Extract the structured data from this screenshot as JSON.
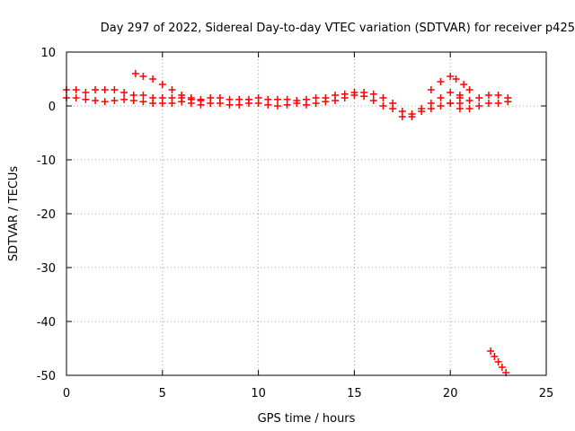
{
  "chart_data": {
    "type": "scatter",
    "title": "Day 297 of 2022, Sidereal Day-to-day VTEC variation (SDTVAR) for receiver p425",
    "xlabel": "GPS time / hours",
    "ylabel": "SDTVAR / TECUs",
    "xlim": [
      0,
      25
    ],
    "ylim": [
      -50,
      10
    ],
    "xticks": [
      0,
      5,
      10,
      15,
      20,
      25
    ],
    "yticks": [
      10,
      0,
      -10,
      -20,
      -30,
      -40,
      -50
    ],
    "grid": true,
    "marker": "+",
    "color": "#ff0000",
    "series": [
      {
        "name": "main-band-upper",
        "x": [
          0.0,
          0.5,
          1.0,
          1.5,
          2.0,
          2.5,
          3.0,
          3.5,
          4.0,
          4.5,
          5.0,
          5.5,
          6.0,
          6.5,
          7.0,
          7.5,
          8.0,
          8.5,
          9.0,
          9.5,
          10.0,
          10.5,
          11.0,
          11.5,
          12.0,
          12.5,
          13.0,
          13.5,
          14.0,
          14.5,
          15.0,
          15.5,
          16.0,
          16.5,
          17.0,
          17.5,
          18.0,
          18.5,
          19.0,
          19.5,
          20.0,
          20.5
        ],
        "y": [
          3.0,
          3.0,
          2.5,
          3.0,
          3.0,
          3.0,
          2.5,
          2.0,
          2.0,
          1.5,
          1.5,
          1.5,
          1.5,
          1.2,
          1.2,
          1.5,
          1.5,
          1.2,
          1.2,
          1.2,
          1.5,
          1.2,
          1.2,
          1.2,
          1.0,
          1.2,
          1.5,
          1.5,
          2.0,
          2.2,
          2.5,
          2.5,
          2.2,
          1.5,
          0.5,
          -1.0,
          -1.5,
          -0.5,
          0.5,
          1.5,
          2.5,
          2.0
        ]
      },
      {
        "name": "main-band-lower",
        "x": [
          0.0,
          0.5,
          1.0,
          1.5,
          2.0,
          2.5,
          3.0,
          3.5,
          4.0,
          4.5,
          5.0,
          5.5,
          6.0,
          6.5,
          7.0,
          7.5,
          8.0,
          8.5,
          9.0,
          9.5,
          10.0,
          10.5,
          11.0,
          11.5,
          12.0,
          12.5,
          13.0,
          13.5,
          14.0,
          14.5,
          15.0,
          15.5,
          16.0,
          16.5,
          17.0,
          17.5,
          18.0,
          18.5,
          19.0,
          19.5,
          20.0,
          20.5
        ],
        "y": [
          1.5,
          1.5,
          1.2,
          1.0,
          0.8,
          1.0,
          1.2,
          1.0,
          0.8,
          0.5,
          0.5,
          0.5,
          0.8,
          0.5,
          0.2,
          0.5,
          0.5,
          0.2,
          0.2,
          0.5,
          0.5,
          0.2,
          0.0,
          0.2,
          0.5,
          0.2,
          0.5,
          0.8,
          1.0,
          1.5,
          2.0,
          1.8,
          1.0,
          0.0,
          -0.5,
          -2.0,
          -2.0,
          -1.0,
          -0.5,
          0.0,
          0.5,
          0.5
        ]
      },
      {
        "name": "arc-early",
        "x": [
          3.6,
          4.0,
          4.5,
          5.0,
          5.5,
          6.0,
          6.5,
          7.0
        ],
        "y": [
          6.0,
          5.5,
          5.0,
          4.0,
          3.0,
          2.0,
          1.5,
          1.0
        ]
      },
      {
        "name": "arc-late",
        "x": [
          19.0,
          19.5,
          20.0,
          20.3,
          20.7,
          21.0
        ],
        "y": [
          3.0,
          4.5,
          5.5,
          5.0,
          4.0,
          3.0
        ]
      },
      {
        "name": "late-tail-upper",
        "x": [
          20.5,
          21.0,
          21.5,
          22.0,
          22.5,
          23.0
        ],
        "y": [
          1.5,
          1.0,
          1.5,
          2.0,
          2.0,
          1.5
        ]
      },
      {
        "name": "late-tail-lower",
        "x": [
          20.0,
          20.5,
          21.0,
          21.5,
          22.0,
          22.5,
          23.0
        ],
        "y": [
          0.5,
          -0.5,
          -0.5,
          0.0,
          0.5,
          0.5,
          0.8
        ]
      },
      {
        "name": "outlier-drop",
        "x": [
          22.1,
          22.3,
          22.5,
          22.7,
          22.9
        ],
        "y": [
          -45.5,
          -46.5,
          -47.5,
          -48.5,
          -49.5
        ]
      }
    ]
  }
}
